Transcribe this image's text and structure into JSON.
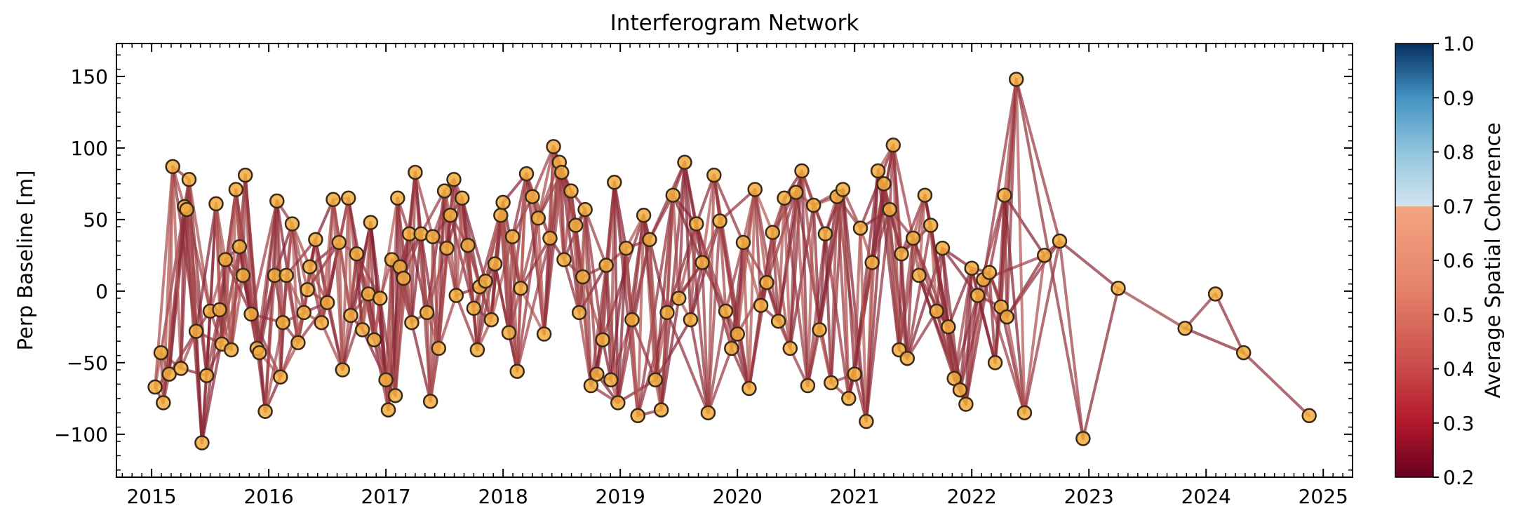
{
  "chart_data": {
    "type": "network-scatter",
    "title": "Interferogram Network",
    "xlabel": "",
    "ylabel": "Perp Baseline [m]",
    "xlim": [
      2014.7,
      2025.25
    ],
    "ylim": [
      -130,
      173
    ],
    "xticks": [
      2015,
      2016,
      2017,
      2018,
      2019,
      2020,
      2021,
      2022,
      2023,
      2024,
      2025
    ],
    "xtick_labels": [
      "2015",
      "2016",
      "2017",
      "2018",
      "2019",
      "2020",
      "2021",
      "2022",
      "2023",
      "2024",
      "2025"
    ],
    "yticks": [
      -100,
      -50,
      0,
      50,
      100,
      150
    ],
    "ytick_labels": [
      "−100",
      "−50",
      "0",
      "50",
      "100",
      "150"
    ],
    "grid": false,
    "colorbar": {
      "label": "Average Spatial Coherence",
      "range": [
        0.2,
        1.0
      ],
      "ticks": [
        0.2,
        0.3,
        0.4,
        0.5,
        0.6,
        0.7,
        0.8,
        0.9,
        1.0
      ],
      "tick_labels": [
        "0.2",
        "0.3",
        "0.4",
        "0.5",
        "0.6",
        "0.7",
        "0.8",
        "0.9",
        "1.0"
      ],
      "colormap": "RdBu",
      "note": "values 0.2-0.7 red, 0.7-1.0 blue"
    },
    "marker_color": "#f2ad3d",
    "marker_edge_color": "#3b2a1a",
    "points": [
      [
        2015.03,
        -67
      ],
      [
        2015.08,
        -43
      ],
      [
        2015.1,
        -78
      ],
      [
        2015.15,
        -58
      ],
      [
        2015.18,
        87
      ],
      [
        2015.25,
        -54
      ],
      [
        2015.28,
        59
      ],
      [
        2015.3,
        57
      ],
      [
        2015.32,
        78
      ],
      [
        2015.38,
        -28
      ],
      [
        2015.43,
        -106
      ],
      [
        2015.47,
        -59
      ],
      [
        2015.5,
        -14
      ],
      [
        2015.55,
        61
      ],
      [
        2015.58,
        -13
      ],
      [
        2015.6,
        -37
      ],
      [
        2015.63,
        22
      ],
      [
        2015.68,
        -41
      ],
      [
        2015.72,
        71
      ],
      [
        2015.75,
        31
      ],
      [
        2015.78,
        11
      ],
      [
        2015.8,
        81
      ],
      [
        2015.85,
        -16
      ],
      [
        2015.9,
        -40
      ],
      [
        2015.92,
        -43
      ],
      [
        2015.97,
        -84
      ],
      [
        2016.05,
        11
      ],
      [
        2016.07,
        63
      ],
      [
        2016.1,
        -60
      ],
      [
        2016.12,
        -22
      ],
      [
        2016.15,
        11
      ],
      [
        2016.2,
        47
      ],
      [
        2016.25,
        -36
      ],
      [
        2016.3,
        -15
      ],
      [
        2016.33,
        1
      ],
      [
        2016.35,
        17
      ],
      [
        2016.4,
        36
      ],
      [
        2016.45,
        -22
      ],
      [
        2016.5,
        -8
      ],
      [
        2016.55,
        64
      ],
      [
        2016.6,
        34
      ],
      [
        2016.63,
        -55
      ],
      [
        2016.68,
        65
      ],
      [
        2016.7,
        -17
      ],
      [
        2016.75,
        26
      ],
      [
        2016.8,
        -27
      ],
      [
        2016.85,
        -2
      ],
      [
        2016.87,
        48
      ],
      [
        2016.9,
        -34
      ],
      [
        2016.95,
        -5
      ],
      [
        2017.0,
        -62
      ],
      [
        2017.02,
        -83
      ],
      [
        2017.05,
        22
      ],
      [
        2017.08,
        -73
      ],
      [
        2017.1,
        65
      ],
      [
        2017.12,
        17
      ],
      [
        2017.15,
        9
      ],
      [
        2017.2,
        40
      ],
      [
        2017.22,
        -22
      ],
      [
        2017.25,
        83
      ],
      [
        2017.3,
        40
      ],
      [
        2017.35,
        -15
      ],
      [
        2017.38,
        -77
      ],
      [
        2017.4,
        38
      ],
      [
        2017.45,
        -40
      ],
      [
        2017.5,
        70
      ],
      [
        2017.52,
        30
      ],
      [
        2017.55,
        53
      ],
      [
        2017.58,
        78
      ],
      [
        2017.6,
        -3
      ],
      [
        2017.65,
        65
      ],
      [
        2017.7,
        32
      ],
      [
        2017.75,
        -12
      ],
      [
        2017.78,
        -41
      ],
      [
        2017.8,
        3
      ],
      [
        2017.85,
        7
      ],
      [
        2017.9,
        -20
      ],
      [
        2017.93,
        19
      ],
      [
        2017.98,
        53
      ],
      [
        2018.0,
        62
      ],
      [
        2018.05,
        -29
      ],
      [
        2018.08,
        38
      ],
      [
        2018.12,
        -56
      ],
      [
        2018.15,
        2
      ],
      [
        2018.2,
        82
      ],
      [
        2018.25,
        66
      ],
      [
        2018.3,
        51
      ],
      [
        2018.35,
        -30
      ],
      [
        2018.4,
        37
      ],
      [
        2018.43,
        101
      ],
      [
        2018.48,
        90
      ],
      [
        2018.5,
        83
      ],
      [
        2018.52,
        22
      ],
      [
        2018.58,
        70
      ],
      [
        2018.62,
        46
      ],
      [
        2018.65,
        -15
      ],
      [
        2018.68,
        10
      ],
      [
        2018.7,
        57
      ],
      [
        2018.75,
        -66
      ],
      [
        2018.8,
        -58
      ],
      [
        2018.85,
        -34
      ],
      [
        2018.88,
        18
      ],
      [
        2018.92,
        -62
      ],
      [
        2018.95,
        76
      ],
      [
        2018.98,
        -78
      ],
      [
        2019.05,
        30
      ],
      [
        2019.1,
        -20
      ],
      [
        2019.15,
        -87
      ],
      [
        2019.2,
        53
      ],
      [
        2019.25,
        36
      ],
      [
        2019.3,
        -62
      ],
      [
        2019.35,
        -83
      ],
      [
        2019.4,
        -15
      ],
      [
        2019.45,
        67
      ],
      [
        2019.5,
        -5
      ],
      [
        2019.55,
        90
      ],
      [
        2019.6,
        -20
      ],
      [
        2019.65,
        47
      ],
      [
        2019.7,
        20
      ],
      [
        2019.75,
        -85
      ],
      [
        2019.8,
        81
      ],
      [
        2019.85,
        49
      ],
      [
        2019.9,
        -14
      ],
      [
        2019.95,
        -40
      ],
      [
        2020.0,
        -30
      ],
      [
        2020.05,
        34
      ],
      [
        2020.1,
        -68
      ],
      [
        2020.15,
        71
      ],
      [
        2020.2,
        -10
      ],
      [
        2020.25,
        6
      ],
      [
        2020.3,
        41
      ],
      [
        2020.35,
        -21
      ],
      [
        2020.4,
        65
      ],
      [
        2020.45,
        -40
      ],
      [
        2020.5,
        69
      ],
      [
        2020.55,
        84
      ],
      [
        2020.6,
        -66
      ],
      [
        2020.65,
        60
      ],
      [
        2020.7,
        -27
      ],
      [
        2020.75,
        40
      ],
      [
        2020.8,
        -64
      ],
      [
        2020.85,
        66
      ],
      [
        2020.9,
        71
      ],
      [
        2020.95,
        -75
      ],
      [
        2021.0,
        -58
      ],
      [
        2021.05,
        44
      ],
      [
        2021.1,
        -91
      ],
      [
        2021.15,
        20
      ],
      [
        2021.2,
        84
      ],
      [
        2021.25,
        75
      ],
      [
        2021.3,
        57
      ],
      [
        2021.33,
        102
      ],
      [
        2021.38,
        -41
      ],
      [
        2021.4,
        26
      ],
      [
        2021.45,
        -47
      ],
      [
        2021.5,
        37
      ],
      [
        2021.55,
        11
      ],
      [
        2021.6,
        67
      ],
      [
        2021.65,
        46
      ],
      [
        2021.7,
        -14
      ],
      [
        2021.75,
        30
      ],
      [
        2021.8,
        -25
      ],
      [
        2021.85,
        -61
      ],
      [
        2021.9,
        -69
      ],
      [
        2021.95,
        -79
      ],
      [
        2022.0,
        16
      ],
      [
        2022.05,
        -3
      ],
      [
        2022.1,
        8
      ],
      [
        2022.15,
        13
      ],
      [
        2022.2,
        -50
      ],
      [
        2022.25,
        -11
      ],
      [
        2022.28,
        67
      ],
      [
        2022.3,
        -18
      ],
      [
        2022.38,
        148
      ],
      [
        2022.45,
        -85
      ],
      [
        2022.62,
        25
      ],
      [
        2022.75,
        35
      ],
      [
        2022.95,
        -103
      ],
      [
        2023.25,
        2
      ],
      [
        2023.82,
        -26
      ],
      [
        2024.08,
        -2
      ],
      [
        2024.32,
        -43
      ],
      [
        2024.88,
        -87
      ]
    ],
    "pair_rule": "each acquisition is connected to several near-in-time neighbours (network of interferometric pairs)",
    "line_coherence_range": [
      0.3,
      0.6
    ],
    "line_base_color": "#8e2f48"
  }
}
